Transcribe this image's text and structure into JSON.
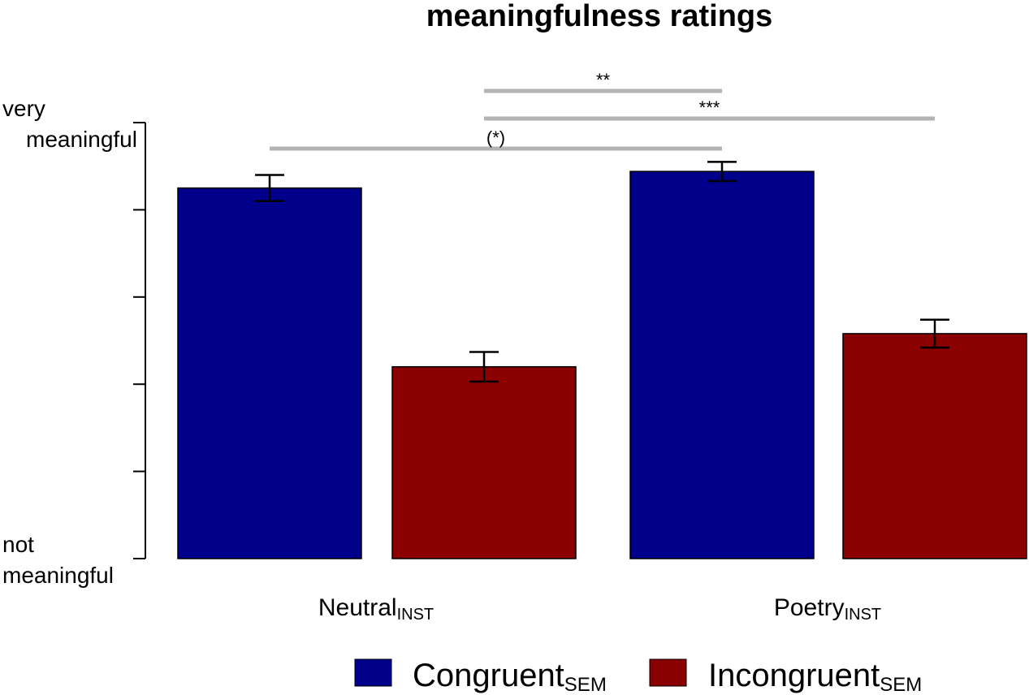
{
  "chart_data": {
    "type": "bar",
    "title": "meaningfulness ratings",
    "ylabel_top": [
      "very",
      "meaningful"
    ],
    "ylabel_bottom": [
      "not",
      "meaningful"
    ],
    "ylim": [
      0,
      5
    ],
    "yticks": [
      0,
      1,
      2,
      3,
      4,
      5
    ],
    "categories": [
      {
        "main": "Neutral",
        "sub": "INST"
      },
      {
        "main": "Poetry",
        "sub": "INST"
      }
    ],
    "series": [
      {
        "name": "Congruent",
        "sub": "SEM",
        "color": "#00008b",
        "values": [
          4.25,
          4.44
        ],
        "errors": [
          0.15,
          0.11
        ]
      },
      {
        "name": "Incongruent",
        "sub": "SEM",
        "color": "#8b0000",
        "values": [
          2.2,
          2.58
        ],
        "errors": [
          0.17,
          0.16
        ]
      }
    ],
    "significance": [
      {
        "label": "**",
        "from": [
          0,
          1
        ],
        "to": [
          1,
          0
        ]
      },
      {
        "label": "***",
        "from": [
          0,
          1
        ],
        "to": [
          1,
          1
        ]
      },
      {
        "label": "(*)",
        "from": [
          0,
          0
        ],
        "to": [
          1,
          0
        ]
      }
    ],
    "sig_bar_color": "#b3b3b3",
    "legend_position": "bottom"
  }
}
